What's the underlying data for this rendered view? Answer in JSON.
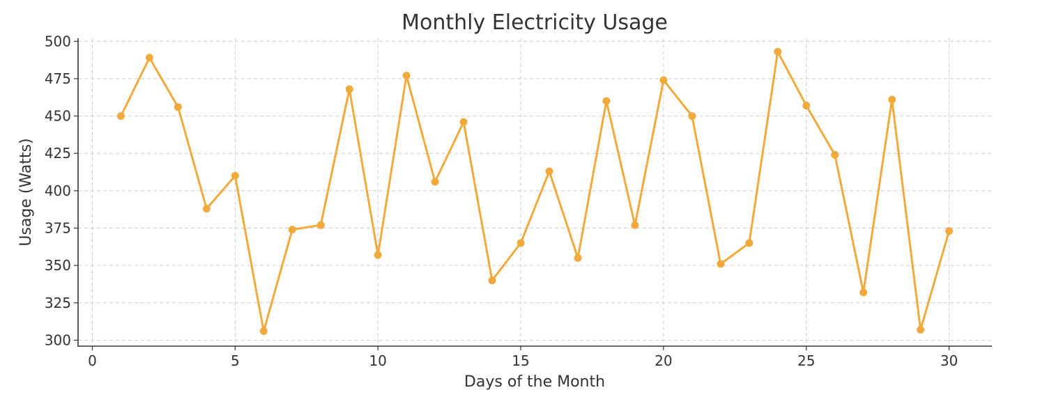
{
  "chart_data": {
    "type": "line",
    "title": "Monthly Electricity Usage",
    "xlabel": "Days of the Month",
    "ylabel": "Usage (Watts)",
    "xlim": [
      -0.5,
      31.5
    ],
    "ylim": [
      296,
      502
    ],
    "grid": true,
    "xticks": [
      0,
      5,
      10,
      15,
      20,
      25,
      30
    ],
    "yticks": [
      300,
      325,
      350,
      375,
      400,
      425,
      450,
      475,
      500
    ],
    "color": "#F2A93B",
    "series": [
      {
        "name": "Usage",
        "x": [
          1,
          2,
          3,
          4,
          5,
          6,
          7,
          8,
          9,
          10,
          11,
          12,
          13,
          14,
          15,
          16,
          17,
          18,
          19,
          20,
          21,
          22,
          23,
          24,
          25,
          26,
          27,
          28,
          29,
          30
        ],
        "values": [
          450,
          489,
          456,
          388,
          410,
          306,
          374,
          377,
          468,
          357,
          477,
          406,
          446,
          340,
          365,
          413,
          355,
          460,
          377,
          474,
          450,
          351,
          365,
          493,
          457,
          424,
          332,
          461,
          307,
          373
        ]
      }
    ]
  }
}
